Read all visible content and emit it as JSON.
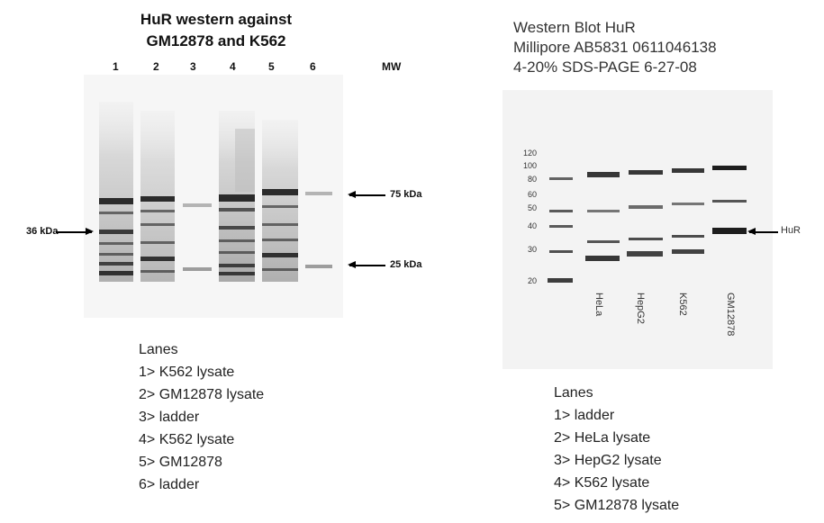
{
  "left_panel": {
    "title_line1": "HuR western against",
    "title_line2": "GM12878 and K562",
    "lane_numbers": [
      "1",
      "2",
      "3",
      "4",
      "5",
      "6"
    ],
    "mw_header": "MW",
    "marker_75": "75 kDa",
    "marker_25": "25 kDa",
    "marker_36": "36 kDa",
    "legend": {
      "heading": "Lanes",
      "items": [
        "1> K562 lysate",
        "2> GM12878 lysate",
        "3> ladder",
        "4> K562 lysate",
        "5> GM12878",
        "6> ladder"
      ]
    }
  },
  "right_panel": {
    "title_line1": "Western Blot HuR",
    "title_line2": "Millipore AB5831 0611046138",
    "title_line3": "4-20% SDS-PAGE 6-27-08",
    "mw_ticks": [
      "120",
      "100",
      "80",
      "60",
      "50",
      "40",
      "30",
      "20"
    ],
    "lane_labels": [
      "HeLa",
      "HepG2",
      "K562",
      "GM12878"
    ],
    "hur_label": "HuR",
    "legend": {
      "heading": "Lanes",
      "items": [
        "1> ladder",
        "2> HeLa lysate",
        "3> HepG2 lysate",
        "4> K562 lysate",
        "5> GM12878 lysate"
      ]
    }
  }
}
